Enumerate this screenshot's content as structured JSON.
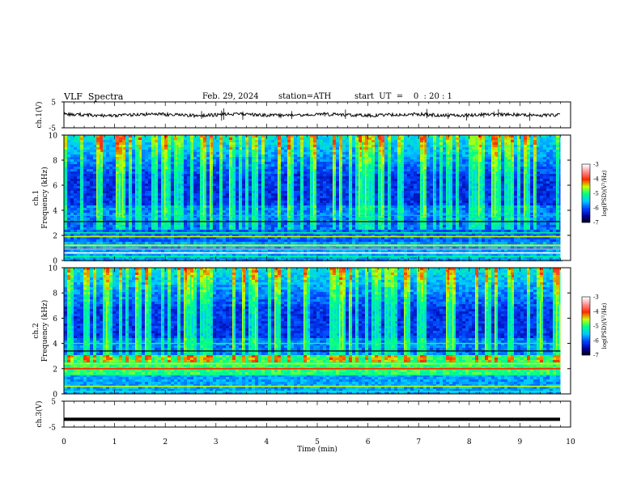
{
  "header": {
    "title": "VLF  Spectra",
    "date": "Feb. 29, 2024",
    "station": "station=ATH",
    "start": "start  UT  =    0  : 20 : 1"
  },
  "chart_data": [
    {
      "type": "line",
      "name": "ch1-waveform",
      "ylabel": "ch.1(V)",
      "ylim": [
        -5,
        5
      ],
      "yticks": [
        "5",
        "-5"
      ],
      "xlim": [
        0,
        10
      ],
      "baseline_value": 0
    },
    {
      "type": "heatmap",
      "name": "ch1-spectrogram",
      "ylabel": "ch.1\nFrequency  (kHz)",
      "xlim": [
        0,
        10
      ],
      "ylim": [
        0,
        10
      ],
      "yticks": [
        "0",
        "2",
        "4",
        "6",
        "8",
        "10"
      ],
      "colorbar": {
        "label": "log(PSD)(V²/Hz)",
        "range": [
          -7,
          -3
        ],
        "ticks": [
          "-3",
          "-4",
          "-5",
          "-6",
          "-7"
        ]
      }
    },
    {
      "type": "heatmap",
      "name": "ch2-spectrogram",
      "ylabel": "ch.2\nFrequency  (kHz)",
      "xlim": [
        0,
        10
      ],
      "ylim": [
        0,
        10
      ],
      "yticks": [
        "0",
        "2",
        "4",
        "6",
        "8",
        "10"
      ],
      "colorbar": {
        "label": "log(PSD)(V²/Hz)",
        "range": [
          -7,
          -3
        ],
        "ticks": [
          "-3",
          "-4",
          "-5",
          "-6",
          "-7"
        ]
      }
    },
    {
      "type": "line",
      "name": "ch3-waveform",
      "ylabel": "ch.3(V)",
      "ylim": [
        -5,
        5
      ],
      "yticks": [
        "5",
        "-5"
      ],
      "xlim": [
        0,
        10
      ],
      "baseline_value": -2
    }
  ],
  "xaxis": {
    "label": "Time  (min)",
    "ticks": [
      "0",
      "1",
      "2",
      "3",
      "4",
      "5",
      "6",
      "7",
      "8",
      "9",
      "10"
    ],
    "range": [
      0,
      10
    ],
    "data_end": 9.8
  },
  "colors": {
    "axis": "#000000",
    "colormap": [
      "#000000",
      "#0000a0",
      "#0044ff",
      "#00c8ff",
      "#00ff88",
      "#c8ff00",
      "#ff2a00",
      "#ff8a8a",
      "#ffffff"
    ]
  }
}
